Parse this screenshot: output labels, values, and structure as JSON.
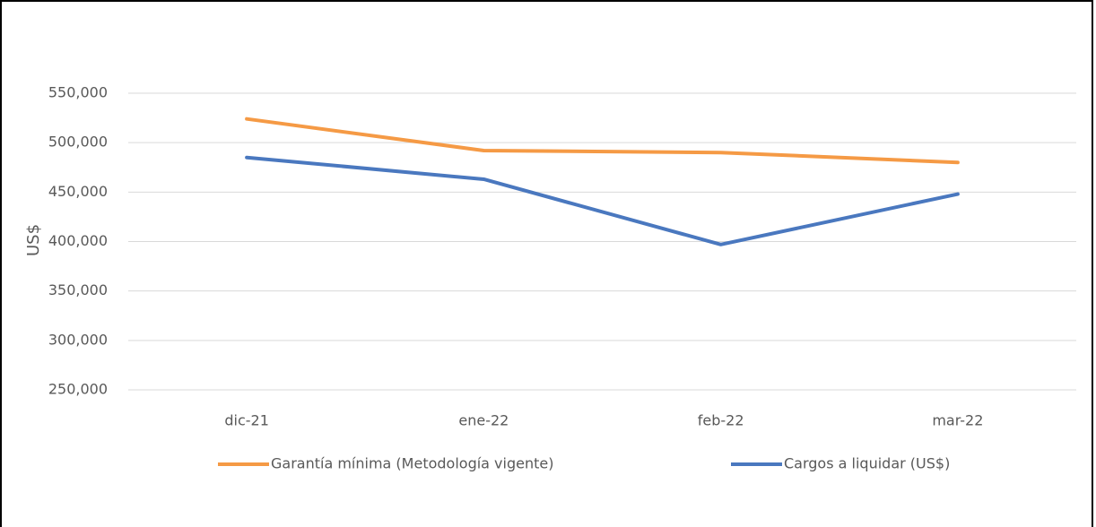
{
  "chart_data": {
    "type": "line",
    "y_label": "US$",
    "categories": [
      "dic-21",
      "ene-22",
      "feb-22",
      "mar-22"
    ],
    "series": [
      {
        "name": "Garantía mínima (Metodología vigente)",
        "color": "#f59a45",
        "values": [
          524000,
          492000,
          490000,
          480000
        ]
      },
      {
        "name": "Cargos a liquidar (US$)",
        "color": "#4a78bf",
        "values": [
          485000,
          463000,
          397000,
          448000
        ]
      }
    ],
    "ylim": [
      250000,
      550000
    ],
    "yticks": [
      {
        "value": 250000,
        "label": "250,000"
      },
      {
        "value": 300000,
        "label": "300,000"
      },
      {
        "value": 350000,
        "label": "350,000"
      },
      {
        "value": 400000,
        "label": "400,000"
      },
      {
        "value": 450000,
        "label": "450,000"
      },
      {
        "value": 500000,
        "label": "500,000"
      },
      {
        "value": 550000,
        "label": "550,000"
      }
    ],
    "grid": true
  }
}
